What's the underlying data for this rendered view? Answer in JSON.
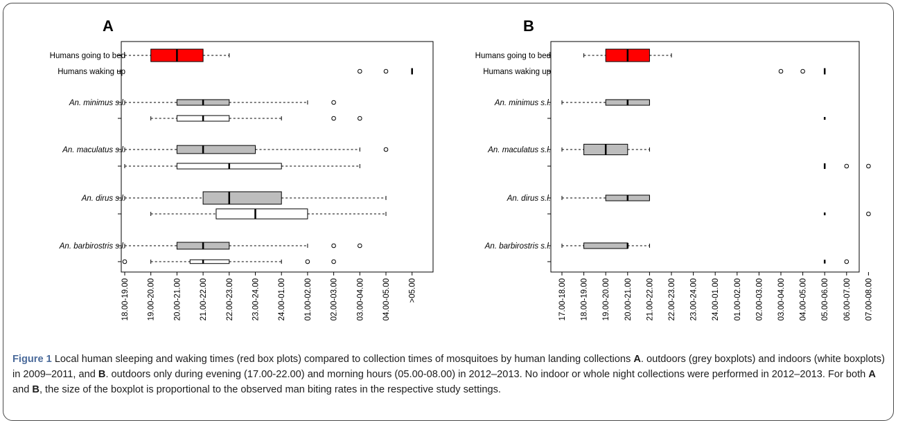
{
  "chart_data": [
    {
      "type": "boxplot",
      "panel_label": "A",
      "row_labels": [
        {
          "text": "Humans going to bed",
          "italic": false
        },
        {
          "text": "Humans waking up",
          "italic": false
        },
        {
          "text": "An. minimus s.l.",
          "italic": true
        },
        {
          "text": "An. maculatus s.l.",
          "italic": true
        },
        {
          "text": "An. dirus s.l.",
          "italic": true
        },
        {
          "text": "An. barbirostris s.l.",
          "italic": true
        }
      ],
      "categories": [
        "18.00-19.00",
        "19.00-20.00",
        "20.00-21.00",
        "21.00-22.00",
        "22.00-23.00",
        "23.00-24.00",
        "24.00-01.00",
        "01.00-02.00",
        "02.00-03.00",
        "03.00-04.00",
        "04.00-05.00",
        ">05.00"
      ],
      "boxes": [
        {
          "group": "Humans going to bed",
          "setting": "human",
          "fill": "#ff0000",
          "rel_width": 1.0,
          "whisker_low": 0,
          "q1": 1,
          "median": 2,
          "q3": 3,
          "whisker_high": 4,
          "outliers": []
        },
        {
          "group": "Humans waking up",
          "setting": "human",
          "fill": "none",
          "rel_width": 0.5,
          "whisker_low": 11,
          "q1": 11,
          "median": 11,
          "q3": 11,
          "whisker_high": 11,
          "outliers": [
            9,
            10
          ]
        },
        {
          "group": "An. minimus s.l.",
          "setting": "outdoors",
          "fill": "#bdbdbd",
          "rel_width": 0.45,
          "whisker_low": 0,
          "q1": 2,
          "median": 3,
          "q3": 4,
          "whisker_high": 7,
          "outliers": [
            8
          ]
        },
        {
          "group": "An. minimus s.l.",
          "setting": "indoors",
          "fill": "#ffffff",
          "rel_width": 0.45,
          "whisker_low": 1,
          "q1": 2,
          "median": 3,
          "q3": 4,
          "whisker_high": 6,
          "outliers": [
            8,
            9
          ]
        },
        {
          "group": "An. maculatus s.l.",
          "setting": "outdoors",
          "fill": "#bdbdbd",
          "rel_width": 0.65,
          "whisker_low": 0,
          "q1": 2,
          "median": 3,
          "q3": 5,
          "whisker_high": 9,
          "outliers": [
            10
          ]
        },
        {
          "group": "An. maculatus s.l.",
          "setting": "indoors",
          "fill": "#ffffff",
          "rel_width": 0.45,
          "whisker_low": 0,
          "q1": 2,
          "median": 4,
          "q3": 6,
          "whisker_high": 9,
          "outliers": []
        },
        {
          "group": "An. dirus s.l.",
          "setting": "outdoors",
          "fill": "#bdbdbd",
          "rel_width": 1.0,
          "whisker_low": 0,
          "q1": 3,
          "median": 4,
          "q3": 6,
          "whisker_high": 10,
          "outliers": []
        },
        {
          "group": "An. dirus s.l.",
          "setting": "indoors",
          "fill": "#ffffff",
          "rel_width": 0.8,
          "whisker_low": 1,
          "q1": 3.5,
          "median": 5,
          "q3": 7,
          "whisker_high": 10,
          "outliers": []
        },
        {
          "group": "An. barbirostris s.l.",
          "setting": "outdoors",
          "fill": "#bdbdbd",
          "rel_width": 0.55,
          "whisker_low": 0,
          "q1": 2,
          "median": 3,
          "q3": 4,
          "whisker_high": 7,
          "outliers": [
            8,
            9
          ]
        },
        {
          "group": "An. barbirostris s.l.",
          "setting": "indoors",
          "fill": "#ffffff",
          "rel_width": 0.3,
          "whisker_low": 1,
          "q1": 2.5,
          "median": 3,
          "q3": 4,
          "whisker_high": 6,
          "outliers": [
            0,
            7,
            8
          ]
        }
      ]
    },
    {
      "type": "boxplot",
      "panel_label": "B",
      "row_labels": [
        {
          "text": "Humans going to bed",
          "italic": false
        },
        {
          "text": "Humans waking up",
          "italic": false
        },
        {
          "text": "An. minimus s.l.",
          "italic": true
        },
        {
          "text": "An. maculatus s.l.",
          "italic": true
        },
        {
          "text": "An. dirus s.l.",
          "italic": true
        },
        {
          "text": "An. barbirostris s.l.",
          "italic": true
        }
      ],
      "categories": [
        "17.00-18.00",
        "18.00-19.00",
        "19.00-20.00",
        "20.00-21.00",
        "21.00-22.00",
        "22.00-23.00",
        "23.00-24.00",
        "24.00-01.00",
        "01.00-02.00",
        "02.00-03.00",
        "03.00-04.00",
        "04.00-05.00",
        "05.00-06.00",
        "06.00-07.00",
        "07.00-08.00"
      ],
      "boxes": [
        {
          "group": "Humans going to bed",
          "setting": "human",
          "fill": "#ff0000",
          "rel_width": 1.0,
          "whisker_low": 1,
          "q1": 2,
          "median": 3,
          "q3": 4,
          "whisker_high": 5,
          "outliers": []
        },
        {
          "group": "Humans waking up",
          "setting": "human",
          "fill": "none",
          "rel_width": 0.5,
          "whisker_low": 12,
          "q1": 12,
          "median": 12,
          "q3": 12,
          "whisker_high": 12,
          "outliers": [
            10,
            11
          ]
        },
        {
          "group": "An. minimus s.l.",
          "setting": "outdoors",
          "fill": "#bdbdbd",
          "rel_width": 0.45,
          "whisker_low": 0,
          "q1": 2,
          "median": 3,
          "q3": 4,
          "whisker_high": 4,
          "outliers": []
        },
        {
          "group": "An. minimus s.l.",
          "setting": "outdoors",
          "fill": "none",
          "rel_width": 0.2,
          "whisker_low": 12,
          "q1": 12,
          "median": 12,
          "q3": 12,
          "whisker_high": 12,
          "outliers": []
        },
        {
          "group": "An. maculatus s.l.",
          "setting": "outdoors",
          "fill": "#bdbdbd",
          "rel_width": 0.85,
          "whisker_low": 0,
          "q1": 1,
          "median": 2,
          "q3": 3,
          "whisker_high": 4,
          "outliers": []
        },
        {
          "group": "An. maculatus s.l.",
          "setting": "outdoors",
          "fill": "none",
          "rel_width": 0.45,
          "whisker_low": 12,
          "q1": 12,
          "median": 12,
          "q3": 12,
          "whisker_high": 12,
          "outliers": [
            13,
            14
          ]
        },
        {
          "group": "An. dirus s.l.",
          "setting": "outdoors",
          "fill": "#bdbdbd",
          "rel_width": 0.45,
          "whisker_low": 0,
          "q1": 2,
          "median": 3,
          "q3": 4,
          "whisker_high": 4,
          "outliers": []
        },
        {
          "group": "An. dirus s.l.",
          "setting": "outdoors",
          "fill": "none",
          "rel_width": 0.2,
          "whisker_low": 12,
          "q1": 12,
          "median": 12,
          "q3": 12,
          "whisker_high": 12,
          "outliers": [
            14
          ]
        },
        {
          "group": "An. barbirostris s.l.",
          "setting": "outdoors",
          "fill": "#bdbdbd",
          "rel_width": 0.45,
          "whisker_low": 0,
          "q1": 1,
          "median": 3,
          "q3": 3,
          "whisker_high": 4,
          "outliers": []
        },
        {
          "group": "An. barbirostris s.l.",
          "setting": "outdoors",
          "fill": "none",
          "rel_width": 0.3,
          "whisker_low": 12,
          "q1": 12,
          "median": 12,
          "q3": 12,
          "whisker_high": 12,
          "outliers": [
            13
          ]
        }
      ]
    }
  ],
  "caption": {
    "figure_label": "Figure 1",
    "segments": [
      {
        "text": " Local human sleeping and waking times (red box plots) compared to collection times of mosquitoes by human landing collections ",
        "bold": false
      },
      {
        "text": "A",
        "bold": true
      },
      {
        "text": ". outdoors (grey boxplots) and indoors (white boxplots) in 2009–2011, and ",
        "bold": false
      },
      {
        "text": "B",
        "bold": true
      },
      {
        "text": ". outdoors only during evening (17.00-22.00) and morning hours (05.00-08.00) in 2012–2013. No indoor or whole night collections were performed in 2012–2013. For both ",
        "bold": false
      },
      {
        "text": "A",
        "bold": true
      },
      {
        "text": " and ",
        "bold": false
      },
      {
        "text": "B",
        "bold": true
      },
      {
        "text": ", the size of the boxplot is proportional to the observed man biting rates in the respective study settings.",
        "bold": false
      }
    ]
  },
  "colors": {
    "human": "#ff0000",
    "outdoors": "#bdbdbd",
    "indoors": "#ffffff",
    "axis": "#000000",
    "caption_label": "#4a6a9a"
  }
}
